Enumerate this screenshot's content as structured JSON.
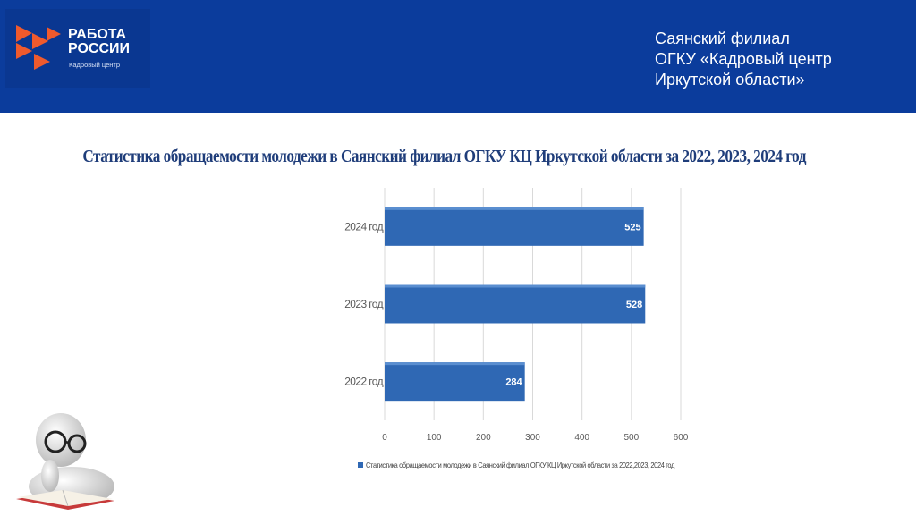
{
  "header": {
    "logo": {
      "title": "РАБОТА\nРОССИИ",
      "subtitle": "Кадровый центр"
    },
    "organization": "Саянский филиал\nОГКУ «Кадровый центр\nИркутской области»"
  },
  "colors": {
    "header_bg": "#0b3c9c",
    "logo_accent": "#ef5a2d",
    "bar": "#2f68b4",
    "grid": "#d9d9d9"
  },
  "chart_data": {
    "type": "bar",
    "orientation": "horizontal",
    "title": "Статистика обращаемости молодежи в Саянский филиал ОГКУ КЦ Иркутской области за 2022, 2023, 2024 год",
    "categories": [
      "2024 год",
      "2023 год",
      "2022 год"
    ],
    "series": [
      {
        "name": "Статистика обращаемости молодежи в Саянский филиал ОГКУ КЦ Иркутской области за 2022,2023, 2024 год",
        "values": [
          525,
          528,
          284
        ]
      }
    ],
    "xlim": [
      0,
      600
    ],
    "xticks": [
      0,
      100,
      200,
      300,
      400,
      500,
      600
    ],
    "grid": true,
    "legend": "bottom",
    "data_labels": true
  }
}
